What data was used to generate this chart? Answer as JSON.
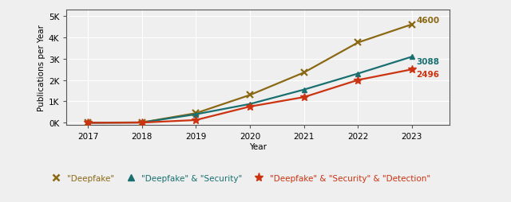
{
  "years": [
    2017,
    2018,
    2019,
    2020,
    2021,
    2022,
    2023
  ],
  "deepfake": [
    5,
    20,
    450,
    1300,
    2350,
    3750,
    4600
  ],
  "deepfake_security": [
    3,
    15,
    400,
    880,
    1550,
    2300,
    3088
  ],
  "deepfake_security_detection": [
    2,
    10,
    130,
    760,
    1200,
    2000,
    2496
  ],
  "color_deepfake": "#8B6914",
  "color_security": "#1A7070",
  "color_detection": "#CC3311",
  "bg_color": "#EFEFEF",
  "ylabel": "Publications per Year",
  "xlabel": "Year",
  "legend_labels": [
    "\"Deepfake\"",
    "\"Deepfake\" & \"Security\"",
    "\"Deepfake\" & \"Security\" & \"Detection\""
  ],
  "end_labels": [
    "4600",
    "3088",
    "2496"
  ],
  "yticks": [
    0,
    1000,
    2000,
    3000,
    4000,
    5000
  ],
  "ytick_labels": [
    "0K",
    "1K",
    "2K",
    "3K",
    "4K",
    "5K"
  ],
  "ylim": [
    -100,
    5300
  ],
  "xlim": [
    2016.6,
    2023.7
  ]
}
